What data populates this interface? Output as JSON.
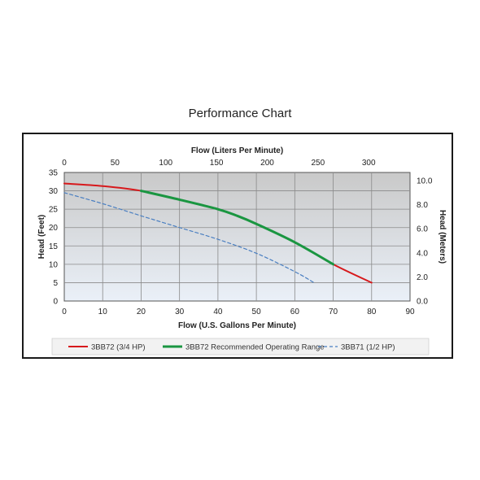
{
  "title": "Performance Chart",
  "chart_data": {
    "type": "line",
    "xlabel": "Flow (U.S. Gallons Per Minute)",
    "x2label": "Flow (Liters Per Minute)",
    "ylabel": "Head (Feet)",
    "y2label": "Head (Meters)",
    "xlim": [
      0,
      90
    ],
    "x2lim": [
      0,
      340.7
    ],
    "ylim": [
      0,
      35
    ],
    "y2lim": [
      0,
      10.67
    ],
    "xticks": [
      0,
      10,
      20,
      30,
      40,
      50,
      60,
      70,
      80,
      90
    ],
    "x2ticks": [
      0,
      50,
      100,
      150,
      200,
      250,
      300
    ],
    "yticks": [
      0,
      5,
      10,
      15,
      20,
      25,
      30,
      35
    ],
    "y2ticks": [
      "0.0",
      "2.0",
      "4.0",
      "6.0",
      "8.0",
      "10.0"
    ],
    "grid": true,
    "legend_position": "bottom",
    "series": [
      {
        "name": "3BB72 (3/4 HP)",
        "color": "#d7191c",
        "style": "solid",
        "x": [
          0,
          10,
          20,
          30,
          40,
          50,
          60,
          70,
          80
        ],
        "y": [
          32,
          31.3,
          30,
          27.6,
          25,
          21,
          16,
          10,
          5
        ]
      },
      {
        "name": "3BB72 Recommended Operating Range",
        "color": "#1a9641",
        "style": "solid",
        "x": [
          20,
          30,
          40,
          45,
          50,
          60,
          70
        ],
        "y": [
          30,
          27.6,
          25,
          23.2,
          21,
          16,
          10
        ]
      },
      {
        "name": "3BB71 (1/2 HP)",
        "color": "#4a7fc1",
        "style": "dashed",
        "x": [
          0,
          10,
          20,
          30,
          40,
          50,
          60,
          65
        ],
        "y": [
          29.5,
          26.5,
          23.2,
          20,
          16.8,
          13,
          8,
          5
        ]
      }
    ]
  }
}
